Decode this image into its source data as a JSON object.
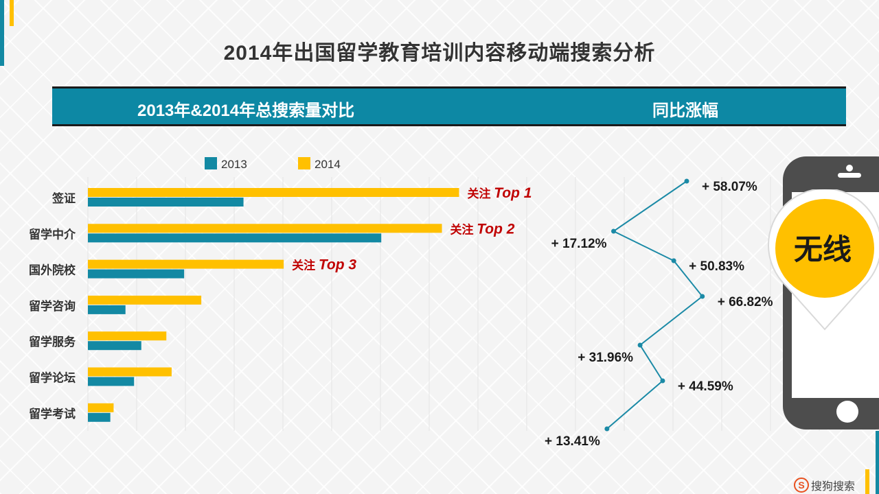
{
  "title": "2014年出国留学教育培训内容移动端搜索分析",
  "header": {
    "left": "2013年&2014年总搜索量对比",
    "right": "同比涨幅"
  },
  "colors": {
    "series2013": "#1389a3",
    "series2014": "#ffc000",
    "line": "#1b8aa6",
    "focus": "#c00000"
  },
  "chart_data": [
    {
      "type": "bar",
      "orientation": "horizontal",
      "title": "2013年&2014年总搜索量对比",
      "categories": [
        "签证",
        "留学中介",
        "国外院校",
        "留学咨询",
        "留学服务",
        "留学论坛",
        "留学考试"
      ],
      "series": [
        {
          "name": "2013",
          "values": [
            236,
            445,
            146,
            57,
            81,
            70,
            34
          ]
        },
        {
          "name": "2014",
          "values": [
            563,
            537,
            297,
            172,
            119,
            127,
            39
          ]
        }
      ],
      "xlim": [
        0,
        800
      ],
      "grid": true,
      "legend": "top",
      "annotations": [
        {
          "category": "签证",
          "prefix": "关注",
          "label": "Top 1"
        },
        {
          "category": "留学中介",
          "prefix": "关注",
          "label": "Top 2"
        },
        {
          "category": "国外院校",
          "prefix": "关注",
          "label": "Top 3"
        }
      ]
    },
    {
      "type": "line",
      "title": "同比涨幅",
      "categories": [
        "签证",
        "留学中介",
        "国外院校",
        "留学咨询",
        "留学服务",
        "留学论坛",
        "留学考试"
      ],
      "values": [
        58.07,
        17.12,
        50.83,
        66.82,
        31.96,
        44.59,
        13.41
      ],
      "labels": [
        "+ 58.07%",
        "+ 17.12%",
        "+ 50.83%",
        "+ 66.82%",
        "+ 31.96%",
        "+ 44.59%",
        "+ 13.41%"
      ],
      "xlim": [
        0,
        75
      ]
    }
  ],
  "badge": {
    "text": "无线"
  },
  "logo": {
    "mark": "S",
    "text": "搜狗搜索"
  }
}
